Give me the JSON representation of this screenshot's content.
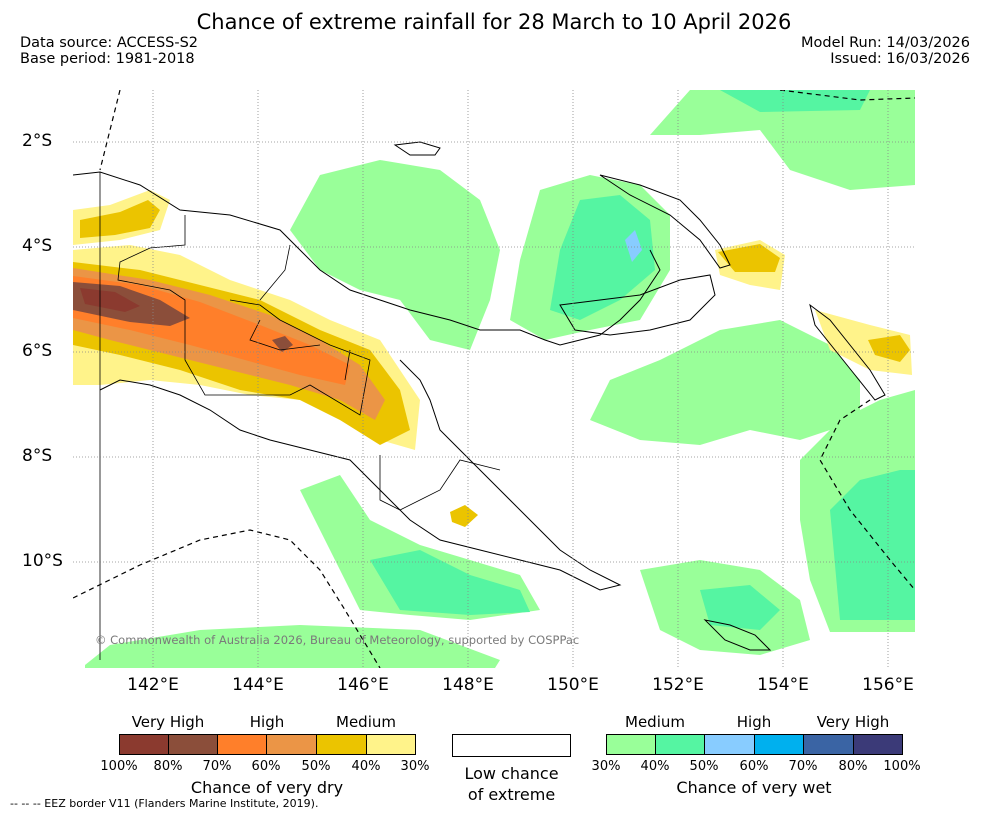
{
  "title": "Chance of extreme rainfall for 28 March to 10 April 2026",
  "meta": {
    "data_source": "Data source: ACCESS-S2",
    "base_period": "Base period: 1981-2018",
    "model_run": "Model Run: 14/03/2026",
    "issued": "Issued: 16/03/2026"
  },
  "map": {
    "lat_labels": [
      "2°S",
      "4°S",
      "6°S",
      "8°S",
      "10°S"
    ],
    "lon_labels": [
      "142°E",
      "144°E",
      "146°E",
      "148°E",
      "150°E",
      "152°E",
      "154°E",
      "156°E"
    ],
    "credit": "© Commonwealth of Australia 2026, Bureau of Meteorology, supported by COSPPac",
    "background": "#ffffff",
    "grid": true
  },
  "legend": {
    "dry": {
      "title": "Chance of very dry",
      "categories": [
        "Very High",
        "High",
        "Medium"
      ],
      "percentages": [
        "100%",
        "80%",
        "70%",
        "60%",
        "50%",
        "40%",
        "30%"
      ],
      "colors": [
        "#8b3a2f",
        "#8b4e3a",
        "#ff7f2a",
        "#eb9546",
        "#ebc400",
        "#fff38a"
      ]
    },
    "low": {
      "label_line1": "Low chance",
      "label_line2": "of extreme"
    },
    "wet": {
      "title": "Chance of very wet",
      "categories": [
        "Medium",
        "High",
        "Very High"
      ],
      "percentages": [
        "30%",
        "40%",
        "50%",
        "60%",
        "70%",
        "80%",
        "100%"
      ],
      "colors": [
        "#99ff99",
        "#55f5a2",
        "#88ccff",
        "#00b0ee",
        "#3a64a4",
        "#3b3a78"
      ]
    }
  },
  "footnote": "--  --  -- EEZ border V11 (Flanders Marine Institute, 2019)."
}
